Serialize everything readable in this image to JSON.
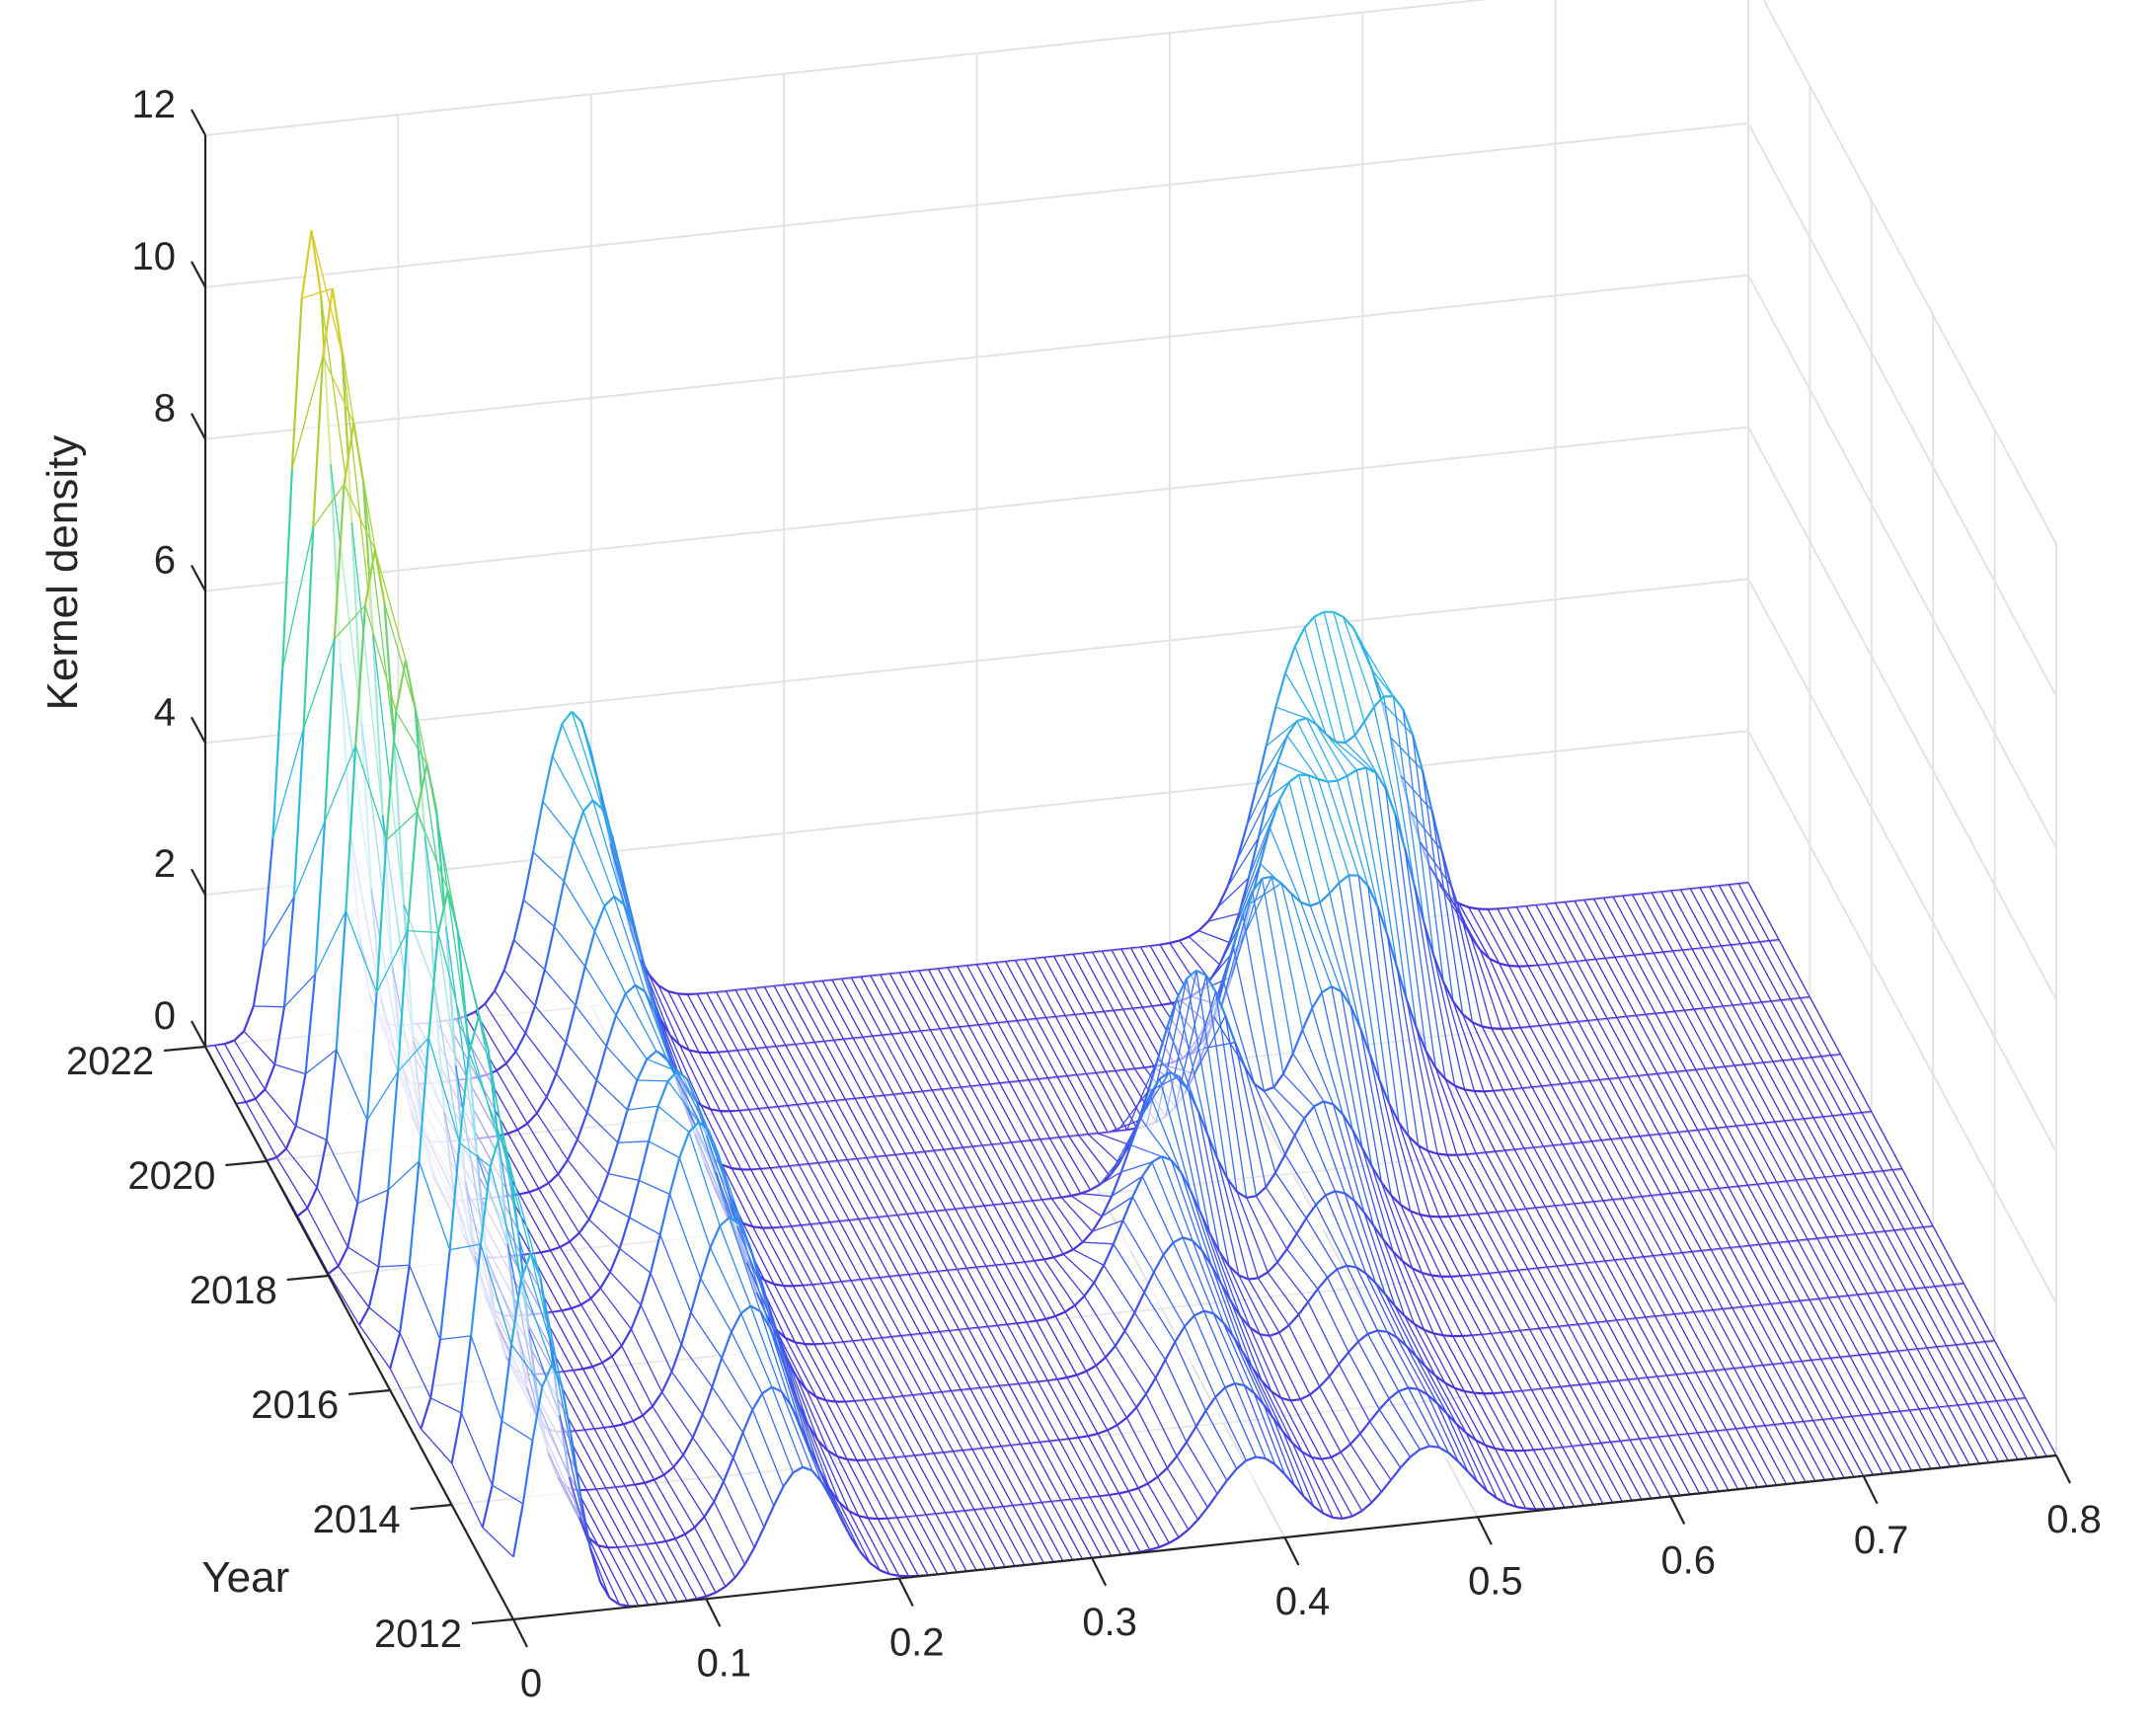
{
  "chart_data": {
    "type": "surface-3d-waterfall",
    "xlabel": "",
    "ylabel": "Year",
    "zlabel": "Kernel density",
    "xlim": [
      0,
      0.8
    ],
    "ylim": [
      2012,
      2022
    ],
    "zlim": [
      0,
      12
    ],
    "x_ticks": [
      "0",
      "0.1",
      "0.2",
      "0.3",
      "0.4",
      "0.5",
      "0.6",
      "0.7",
      "0.8"
    ],
    "y_ticks": [
      "2012",
      "2014",
      "2016",
      "2018",
      "2020",
      "2022"
    ],
    "z_ticks": [
      "0",
      "2",
      "4",
      "6",
      "8",
      "10",
      "12"
    ],
    "grid": true,
    "colormap": [
      "#4b2fd6",
      "#3a6ff0",
      "#2fb9e6",
      "#3fd1a0",
      "#a8d23a",
      "#f5c828"
    ],
    "series": [
      {
        "name": "2012",
        "peaks": [
          {
            "x": 0.02,
            "height": 3.3,
            "width": 0.012
          },
          {
            "x": 0.15,
            "height": 1.6,
            "width": 0.018
          },
          {
            "x": 0.385,
            "height": 1.1,
            "width": 0.02
          },
          {
            "x": 0.475,
            "height": 1.0,
            "width": 0.02
          }
        ]
      },
      {
        "name": "2013",
        "peaks": [
          {
            "x": 0.025,
            "height": 4.0,
            "width": 0.012
          },
          {
            "x": 0.15,
            "height": 1.9,
            "width": 0.018
          },
          {
            "x": 0.39,
            "height": 1.3,
            "width": 0.02
          },
          {
            "x": 0.48,
            "height": 1.0,
            "width": 0.02
          }
        ]
      },
      {
        "name": "2014",
        "peaks": [
          {
            "x": 0.025,
            "height": 4.8,
            "width": 0.012
          },
          {
            "x": 0.155,
            "height": 2.2,
            "width": 0.018
          },
          {
            "x": 0.39,
            "height": 1.5,
            "width": 0.02
          },
          {
            "x": 0.48,
            "height": 1.0,
            "width": 0.02
          }
        ]
      },
      {
        "name": "2015",
        "peaks": [
          {
            "x": 0.03,
            "height": 5.6,
            "width": 0.012
          },
          {
            "x": 0.16,
            "height": 2.6,
            "width": 0.018
          },
          {
            "x": 0.395,
            "height": 1.7,
            "width": 0.02
          },
          {
            "x": 0.48,
            "height": 1.1,
            "width": 0.02
          }
        ]
      },
      {
        "name": "2016",
        "peaks": [
          {
            "x": 0.03,
            "height": 6.5,
            "width": 0.012
          },
          {
            "x": 0.16,
            "height": 3.1,
            "width": 0.018
          },
          {
            "x": 0.4,
            "height": 2.0,
            "width": 0.02
          },
          {
            "x": 0.49,
            "height": 1.3,
            "width": 0.02
          }
        ]
      },
      {
        "name": "2017",
        "peaks": [
          {
            "x": 0.035,
            "height": 7.4,
            "width": 0.012
          },
          {
            "x": 0.165,
            "height": 3.0,
            "width": 0.018
          },
          {
            "x": 0.42,
            "height": 2.3,
            "width": 0.02
          },
          {
            "x": 0.5,
            "height": 1.7,
            "width": 0.02
          }
        ]
      },
      {
        "name": "2018",
        "peaks": [
          {
            "x": 0.04,
            "height": 8.0,
            "width": 0.012
          },
          {
            "x": 0.17,
            "height": 2.5,
            "width": 0.018
          },
          {
            "x": 0.45,
            "height": 2.8,
            "width": 0.02
          },
          {
            "x": 0.52,
            "height": 2.4,
            "width": 0.02
          }
        ]
      },
      {
        "name": "2019",
        "peaks": [
          {
            "x": 0.04,
            "height": 8.7,
            "width": 0.012
          },
          {
            "x": 0.175,
            "height": 2.6,
            "width": 0.018
          },
          {
            "x": 0.5,
            "height": 3.0,
            "width": 0.02
          },
          {
            "x": 0.55,
            "height": 2.9,
            "width": 0.02
          }
        ]
      },
      {
        "name": "2020",
        "peaks": [
          {
            "x": 0.045,
            "height": 9.6,
            "width": 0.012
          },
          {
            "x": 0.18,
            "height": 3.0,
            "width": 0.018
          },
          {
            "x": 0.53,
            "height": 3.3,
            "width": 0.02
          },
          {
            "x": 0.575,
            "height": 3.3,
            "width": 0.02
          }
        ]
      },
      {
        "name": "2021",
        "peaks": [
          {
            "x": 0.05,
            "height": 10.6,
            "width": 0.012
          },
          {
            "x": 0.185,
            "height": 3.5,
            "width": 0.018
          },
          {
            "x": 0.55,
            "height": 3.4,
            "width": 0.02
          },
          {
            "x": 0.6,
            "height": 3.6,
            "width": 0.02
          }
        ]
      },
      {
        "name": "2022",
        "peaks": [
          {
            "x": 0.055,
            "height": 10.6,
            "width": 0.012
          },
          {
            "x": 0.19,
            "height": 3.9,
            "width": 0.018
          },
          {
            "x": 0.565,
            "height": 3.1,
            "width": 0.02
          },
          {
            "x": 0.6,
            "height": 3.0,
            "width": 0.02
          }
        ]
      }
    ]
  }
}
